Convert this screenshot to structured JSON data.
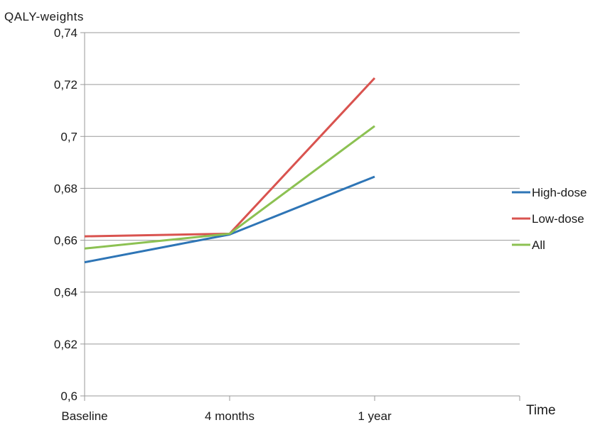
{
  "chart_data": {
    "type": "line",
    "ylabel": "QALY-weights",
    "xlabel": "Time",
    "categories": [
      "Baseline",
      "4 months",
      "1 year"
    ],
    "ylim": [
      0.6,
      0.74
    ],
    "yticks": [
      0.6,
      0.62,
      0.64,
      0.66,
      0.68,
      0.7,
      0.72,
      0.74
    ],
    "ytick_labels": [
      "0,6",
      "0,62",
      "0,64",
      "0,66",
      "0,68",
      "0,7",
      "0,72",
      "0,74"
    ],
    "grid": true,
    "legend_position": "right",
    "series": [
      {
        "name": "High-dose",
        "color": "#2e75b6",
        "values": [
          0.6515,
          0.6622,
          0.6845
        ]
      },
      {
        "name": "Low-dose",
        "color": "#d9534f",
        "values": [
          0.6615,
          0.6625,
          0.7225
        ]
      },
      {
        "name": "All",
        "color": "#8cc152",
        "values": [
          0.6568,
          0.6625,
          0.704
        ]
      }
    ]
  }
}
